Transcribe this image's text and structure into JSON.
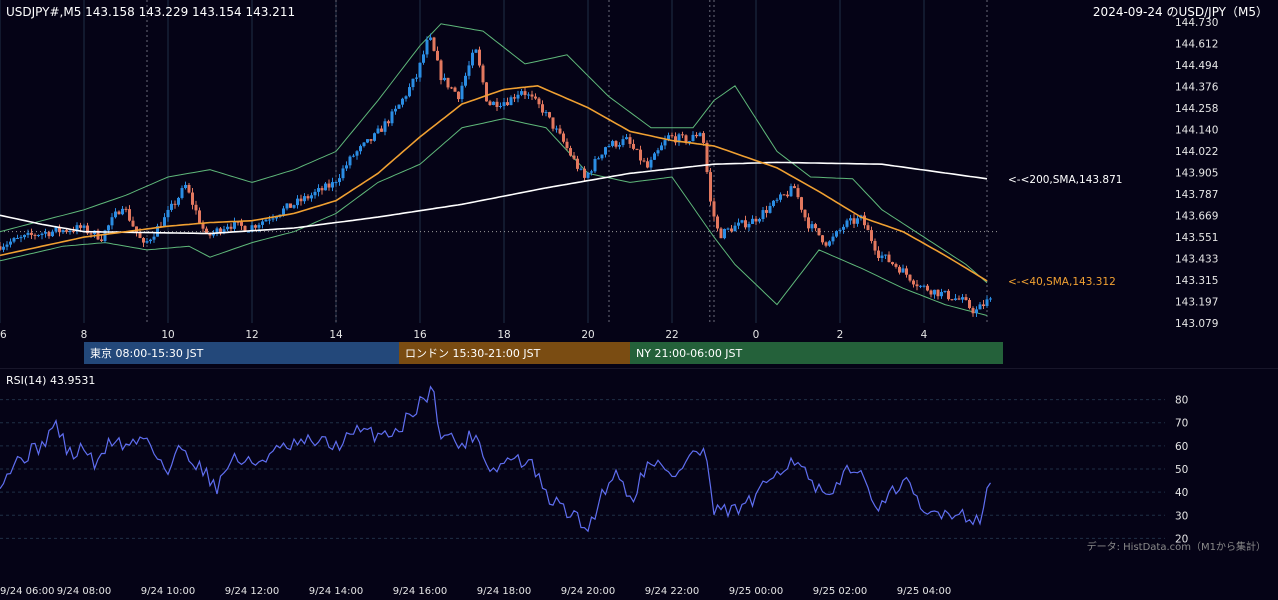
{
  "header": {
    "symbol_info": "USDJPY#,M5 143.158 143.229 143.154 143.211",
    "title": "2024-09-24 のUSD/JPY（M5）"
  },
  "rsi_header": "RSI(14) 43.9531",
  "credit": "データ: HistData.com（M1から集計）",
  "sessions": [
    {
      "label": "東京 08:00-15:30 JST",
      "color": "#23487a",
      "start": 8.0,
      "end": 15.5
    },
    {
      "label": "ロンドン 15:30-21:00 JST",
      "color": "#7a4c12",
      "start": 15.5,
      "end": 21.0
    },
    {
      "label": "NY 21:00-06:00 JST",
      "color": "#24613a",
      "start": 21.0,
      "end": 30.0
    }
  ],
  "colors": {
    "up": "#2b8de3",
    "down": "#e3785f",
    "sma40": "#f0a032",
    "sma200": "#ffffff",
    "bands": "#5fb87a",
    "rsi": "#5f6ef0",
    "grid": "#1f2f45",
    "bg": "#050316"
  },
  "chart_data": [
    {
      "type": "candlestick",
      "title": "USDJPY#,M5",
      "x_range_hours": [
        6,
        30
      ],
      "ylim": [
        143.079,
        144.73
      ],
      "y_ticks": [
        143.079,
        143.197,
        143.315,
        143.433,
        143.551,
        143.669,
        143.787,
        143.905,
        144.022,
        144.14,
        144.258,
        144.376,
        144.494,
        144.612,
        144.73
      ],
      "x_tick_labels": [
        "6",
        "8",
        "10",
        "12",
        "14",
        "16",
        "18",
        "20",
        "22",
        "0",
        "2",
        "4"
      ],
      "x_tick_hours": [
        6,
        8,
        10,
        12,
        14,
        16,
        18,
        20,
        22,
        24,
        26,
        28
      ],
      "session_dividers_hours": [
        9.5,
        14.0,
        20.5,
        22.9,
        23.0,
        29.5
      ],
      "reference_line": 143.58,
      "price_anchors": [
        [
          6.0,
          143.5
        ],
        [
          7.0,
          143.57
        ],
        [
          8.0,
          143.6
        ],
        [
          8.5,
          143.55
        ],
        [
          9.0,
          143.73
        ],
        [
          9.5,
          143.5
        ],
        [
          10.0,
          143.65
        ],
        [
          10.5,
          143.83
        ],
        [
          11.0,
          143.55
        ],
        [
          11.5,
          143.62
        ],
        [
          12.0,
          143.6
        ],
        [
          13.0,
          143.72
        ],
        [
          14.0,
          143.84
        ],
        [
          14.5,
          144.0
        ],
        [
          15.0,
          144.1
        ],
        [
          15.5,
          144.24
        ],
        [
          16.0,
          144.43
        ],
        [
          16.3,
          144.65
        ],
        [
          16.6,
          144.42
        ],
        [
          17.0,
          144.33
        ],
        [
          17.4,
          144.58
        ],
        [
          17.7,
          144.28
        ],
        [
          18.2,
          144.3
        ],
        [
          18.5,
          144.36
        ],
        [
          19.0,
          144.25
        ],
        [
          19.5,
          144.07
        ],
        [
          20.0,
          143.87
        ],
        [
          20.5,
          144.05
        ],
        [
          21.0,
          144.08
        ],
        [
          21.5,
          143.93
        ],
        [
          22.0,
          144.1
        ],
        [
          22.5,
          144.08
        ],
        [
          22.8,
          144.14
        ],
        [
          23.0,
          143.74
        ],
        [
          23.2,
          143.56
        ],
        [
          23.5,
          143.6
        ],
        [
          24.0,
          143.64
        ],
        [
          24.5,
          143.73
        ],
        [
          25.0,
          143.82
        ],
        [
          25.3,
          143.63
        ],
        [
          25.8,
          143.51
        ],
        [
          26.2,
          143.62
        ],
        [
          26.6,
          143.65
        ],
        [
          27.0,
          143.46
        ],
        [
          27.5,
          143.38
        ],
        [
          28.0,
          143.28
        ],
        [
          28.5,
          143.24
        ],
        [
          29.0,
          143.2
        ],
        [
          29.3,
          143.14
        ],
        [
          29.6,
          143.2
        ]
      ],
      "sma200": {
        "name": "200,SMA",
        "last_value": 143.871,
        "label": "<-<200,SMA,143.871",
        "anchors": [
          [
            6.0,
            143.67
          ],
          [
            7.0,
            143.62
          ],
          [
            8.0,
            143.58
          ],
          [
            11.0,
            143.57
          ],
          [
            13.0,
            143.6
          ],
          [
            15.0,
            143.66
          ],
          [
            17.0,
            143.73
          ],
          [
            19.0,
            143.82
          ],
          [
            21.0,
            143.9
          ],
          [
            23.0,
            143.95
          ],
          [
            24.5,
            143.96
          ],
          [
            27.0,
            143.95
          ],
          [
            29.5,
            143.87
          ]
        ]
      },
      "sma40": {
        "name": "40,SMA",
        "last_value": 143.312,
        "label": "<-<40,SMA,143.312",
        "anchors": [
          [
            6.0,
            143.45
          ],
          [
            7.0,
            143.5
          ],
          [
            8.0,
            143.55
          ],
          [
            9.0,
            143.58
          ],
          [
            10.0,
            143.61
          ],
          [
            11.0,
            143.63
          ],
          [
            12.0,
            143.64
          ],
          [
            13.0,
            143.68
          ],
          [
            14.0,
            143.75
          ],
          [
            15.0,
            143.9
          ],
          [
            16.0,
            144.1
          ],
          [
            17.0,
            144.28
          ],
          [
            18.0,
            144.36
          ],
          [
            18.8,
            144.38
          ],
          [
            20.0,
            144.26
          ],
          [
            21.0,
            144.13
          ],
          [
            22.0,
            144.08
          ],
          [
            23.0,
            144.05
          ],
          [
            24.5,
            143.93
          ],
          [
            25.5,
            143.8
          ],
          [
            26.5,
            143.66
          ],
          [
            27.5,
            143.58
          ],
          [
            28.5,
            143.45
          ],
          [
            29.5,
            143.31
          ]
        ]
      },
      "bands": {
        "name": "Bollinger Bands",
        "upper": [
          [
            6.0,
            143.58
          ],
          [
            8.0,
            143.7
          ],
          [
            9.0,
            143.78
          ],
          [
            10.0,
            143.88
          ],
          [
            11.0,
            143.92
          ],
          [
            12.0,
            143.85
          ],
          [
            13.0,
            143.92
          ],
          [
            14.0,
            144.02
          ],
          [
            15.0,
            144.3
          ],
          [
            16.0,
            144.6
          ],
          [
            16.5,
            144.72
          ],
          [
            17.5,
            144.68
          ],
          [
            18.5,
            144.5
          ],
          [
            19.5,
            144.55
          ],
          [
            20.5,
            144.32
          ],
          [
            21.5,
            144.15
          ],
          [
            22.5,
            144.15
          ],
          [
            23.0,
            144.3
          ],
          [
            23.5,
            144.38
          ],
          [
            24.5,
            144.02
          ],
          [
            25.3,
            143.88
          ],
          [
            26.3,
            143.87
          ],
          [
            27.0,
            143.7
          ],
          [
            28.0,
            143.55
          ],
          [
            29.0,
            143.4
          ],
          [
            29.5,
            143.3
          ]
        ],
        "lower": [
          [
            6.0,
            143.42
          ],
          [
            7.5,
            143.5
          ],
          [
            8.5,
            143.52
          ],
          [
            9.5,
            143.48
          ],
          [
            10.5,
            143.5
          ],
          [
            11.0,
            143.44
          ],
          [
            12.0,
            143.52
          ],
          [
            13.0,
            143.58
          ],
          [
            14.0,
            143.68
          ],
          [
            15.0,
            143.85
          ],
          [
            16.0,
            143.95
          ],
          [
            17.0,
            144.15
          ],
          [
            18.0,
            144.2
          ],
          [
            19.0,
            144.15
          ],
          [
            20.0,
            143.9
          ],
          [
            21.0,
            143.85
          ],
          [
            22.0,
            143.88
          ],
          [
            23.0,
            143.55
          ],
          [
            23.5,
            143.4
          ],
          [
            24.5,
            143.18
          ],
          [
            25.5,
            143.48
          ],
          [
            26.5,
            143.38
          ],
          [
            27.5,
            143.27
          ],
          [
            28.5,
            143.18
          ],
          [
            29.5,
            143.12
          ]
        ]
      }
    },
    {
      "type": "line",
      "title": "RSI(14) 43.9531",
      "ylim": [
        15,
        85
      ],
      "y_ticks": [
        20,
        30,
        40,
        50,
        60,
        70,
        80
      ],
      "x_tick_labels": [
        "9/24 06:00",
        "9/24 08:00",
        "9/24 10:00",
        "9/24 12:00",
        "9/24 14:00",
        "9/24 16:00",
        "9/24 18:00",
        "9/24 20:00",
        "9/24 22:00",
        "9/25 00:00",
        "9/25 02:00",
        "9/25 04:00"
      ],
      "x_tick_hours": [
        6,
        8,
        10,
        12,
        14,
        16,
        18,
        20,
        22,
        24,
        26,
        28
      ],
      "anchors": [
        [
          6.0,
          45
        ],
        [
          6.5,
          55
        ],
        [
          7.0,
          60
        ],
        [
          7.3,
          70
        ],
        [
          7.7,
          55
        ],
        [
          8.0,
          60
        ],
        [
          8.3,
          50
        ],
        [
          8.6,
          63
        ],
        [
          9.0,
          60
        ],
        [
          9.5,
          64
        ],
        [
          10.0,
          48
        ],
        [
          10.3,
          60
        ],
        [
          10.8,
          50
        ],
        [
          11.2,
          42
        ],
        [
          11.5,
          55
        ],
        [
          12.0,
          52
        ],
        [
          12.5,
          57
        ],
        [
          13.0,
          60
        ],
        [
          13.5,
          62
        ],
        [
          14.0,
          60
        ],
        [
          14.5,
          66
        ],
        [
          15.0,
          65
        ],
        [
          15.5,
          67
        ],
        [
          16.0,
          79
        ],
        [
          16.3,
          84
        ],
        [
          16.5,
          66
        ],
        [
          17.0,
          60
        ],
        [
          17.3,
          66
        ],
        [
          17.7,
          49
        ],
        [
          18.2,
          55
        ],
        [
          18.7,
          51
        ],
        [
          19.0,
          38
        ],
        [
          19.5,
          32
        ],
        [
          20.0,
          24
        ],
        [
          20.5,
          46
        ],
        [
          20.8,
          48
        ],
        [
          21.0,
          36
        ],
        [
          21.5,
          55
        ],
        [
          22.0,
          46
        ],
        [
          22.5,
          57
        ],
        [
          22.8,
          57
        ],
        [
          23.0,
          31
        ],
        [
          23.5,
          32
        ],
        [
          24.0,
          37
        ],
        [
          24.5,
          50
        ],
        [
          25.0,
          55
        ],
        [
          25.3,
          43
        ],
        [
          25.8,
          36
        ],
        [
          26.2,
          53
        ],
        [
          26.5,
          46
        ],
        [
          27.0,
          33
        ],
        [
          27.5,
          46
        ],
        [
          28.0,
          30
        ],
        [
          28.5,
          32
        ],
        [
          29.0,
          30
        ],
        [
          29.3,
          28
        ],
        [
          29.6,
          44
        ]
      ]
    }
  ]
}
